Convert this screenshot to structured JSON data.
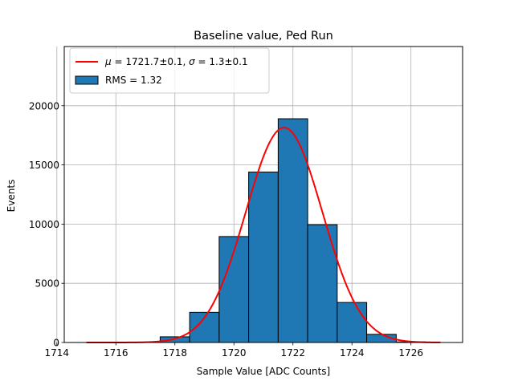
{
  "chart_data": {
    "type": "histogram",
    "title": "Baseline value, Ped Run",
    "xlabel": "Sample Value [ADC Counts]",
    "ylabel": "Events",
    "xlim": [
      1714.25,
      1727.75
    ],
    "ylim": [
      0,
      25000
    ],
    "xticks": [
      "1714",
      "1716",
      "1718",
      "1720",
      "1722",
      "1724",
      "1726"
    ],
    "xtick_values": [
      1714,
      1716,
      1718,
      1720,
      1722,
      1724,
      1726
    ],
    "yticks": [
      "0",
      "5000",
      "10000",
      "15000",
      "20000"
    ],
    "ytick_values": [
      0,
      5000,
      10000,
      15000,
      20000
    ],
    "grid": true,
    "legend_position": "top-left",
    "bins": [
      {
        "x0": 1714.5,
        "x1": 1715.5,
        "value": 2
      },
      {
        "x0": 1715.5,
        "x1": 1716.5,
        "value": 5
      },
      {
        "x0": 1716.5,
        "x1": 1717.5,
        "value": 30
      },
      {
        "x0": 1717.5,
        "x1": 1718.5,
        "value": 480
      },
      {
        "x0": 1718.5,
        "x1": 1719.5,
        "value": 2550
      },
      {
        "x0": 1719.5,
        "x1": 1720.5,
        "value": 8950
      },
      {
        "x0": 1720.5,
        "x1": 1721.5,
        "value": 14400
      },
      {
        "x0": 1721.5,
        "x1": 1722.5,
        "value": 18900
      },
      {
        "x0": 1722.5,
        "x1": 1723.5,
        "value": 9950
      },
      {
        "x0": 1723.5,
        "x1": 1724.5,
        "value": 3380
      },
      {
        "x0": 1724.5,
        "x1": 1725.5,
        "value": 690
      },
      {
        "x0": 1725.5,
        "x1": 1726.5,
        "value": 50
      }
    ],
    "fit": {
      "type": "gaussian",
      "mu": 1721.7,
      "sigma": 1.3,
      "amplitude": 18150,
      "x_range": [
        1715,
        1727
      ]
    },
    "legend": [
      {
        "label": "μ = 1721.7±0.1, σ = 1.3±0.1",
        "label_parts": {
          "mu_sym": "μ",
          "mu_text": " = 1721.7±0.1, ",
          "sigma_sym": "σ",
          "sigma_text": " = 1.3±0.1"
        },
        "kind": "line",
        "color": "#ff0000"
      },
      {
        "label": "RMS = 1.32",
        "kind": "patch",
        "color": "#1f77b4"
      }
    ],
    "colors": {
      "bars": "#1f77b4",
      "bar_edge": "#000000",
      "fit": "#ff0000",
      "grid": "#b0b0b0"
    }
  }
}
